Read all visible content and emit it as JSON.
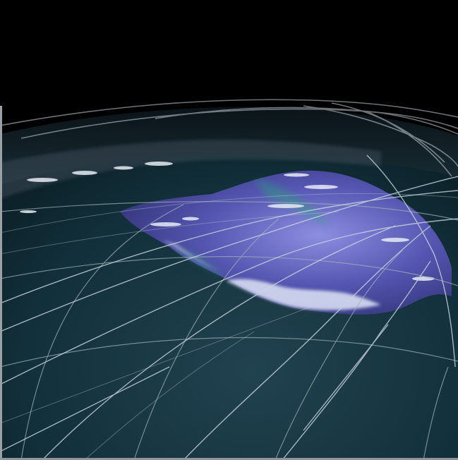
{
  "scene": {
    "subject": "globe-satellite-orbits",
    "colors": {
      "space": "#000000",
      "ocean": "#0f2530",
      "ocean_deep": "#0a1a22",
      "continent": "#5b5cb8",
      "continent_light": "#9fa2e8",
      "ice": "#d9e2f0",
      "orbit_tracks": "#c8d6e0",
      "grid": "#9fb0b8",
      "teal_glow": "#2aa37a"
    }
  }
}
